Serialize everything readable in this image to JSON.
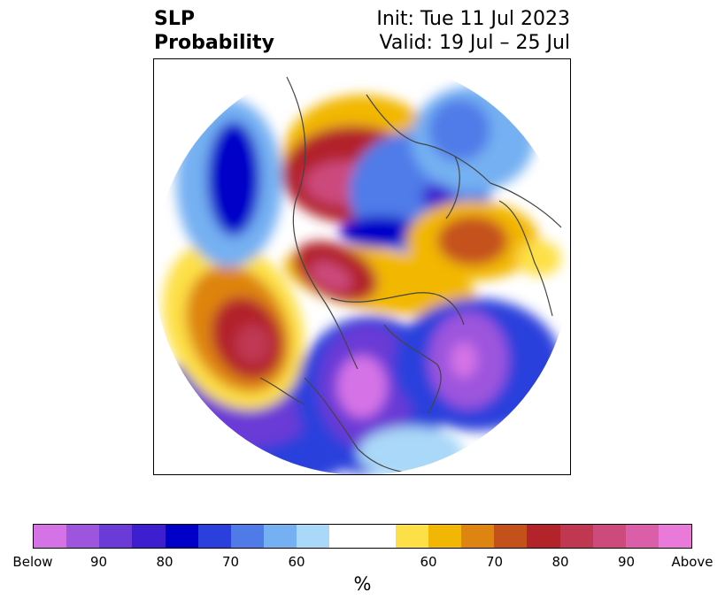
{
  "header": {
    "left_line1": "SLP",
    "left_line2": "Probability",
    "right_line1": "Init: Tue 11 Jul 2023",
    "right_line2": "Valid: 19 Jul – 25 Jul"
  },
  "colorbar": {
    "colors": [
      "#d573e6",
      "#9d55dd",
      "#6a3bd6",
      "#3d1fd0",
      "#0000c8",
      "#2a3fdc",
      "#4f7be8",
      "#74b0f2",
      "#aad8f8",
      "#ffffff",
      "#ffffff",
      "#fde047",
      "#f2b705",
      "#de8410",
      "#c5511a",
      "#b2232a",
      "#c03752",
      "#cc4a7c",
      "#db5fa8",
      "#e97ad9"
    ],
    "tick_labels": [
      "Below",
      "90",
      "80",
      "70",
      "60",
      "60",
      "70",
      "80",
      "90",
      "Above"
    ],
    "unit": "%"
  },
  "map": {
    "region": "northern-hemisphere-polar",
    "land_outline_color": "#444444"
  }
}
